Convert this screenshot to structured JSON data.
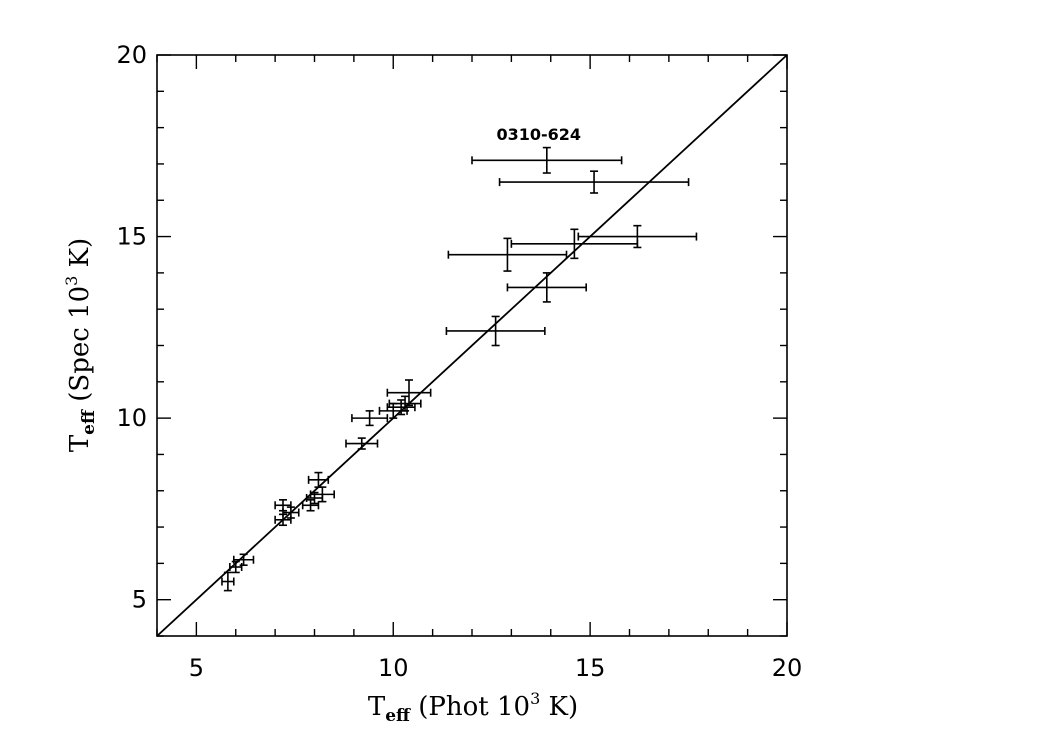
{
  "chart_data": {
    "type": "scatter",
    "title": "",
    "xlabel": {
      "main": "T",
      "sub": "eff",
      "rest1": " (Phot 10",
      "sup": "3",
      "rest2": " K)"
    },
    "ylabel": {
      "main": "T",
      "sub": "eff",
      "rest1": " (Spec 10",
      "sup": "3",
      "rest2": " K)"
    },
    "xlim": [
      4,
      20
    ],
    "ylim": [
      4,
      20
    ],
    "x_major_ticks": [
      5,
      10,
      15,
      20
    ],
    "y_major_ticks": [
      5,
      10,
      15,
      20
    ],
    "x_tick_labels": [
      "5",
      "10",
      "15",
      "20"
    ],
    "y_tick_labels": [
      "5",
      "10",
      "15",
      "20"
    ],
    "minor_step": 1,
    "reference_line": {
      "from": [
        4,
        4
      ],
      "to": [
        20,
        20
      ]
    },
    "annotations": [
      {
        "text": "0310-624",
        "x": 14.0,
        "y": 17.8
      }
    ],
    "points": [
      {
        "x": 5.8,
        "y": 5.5,
        "xerr": 0.15,
        "yerr": 0.25
      },
      {
        "x": 6.0,
        "y": 5.9,
        "xerr": 0.15,
        "yerr": 0.15
      },
      {
        "x": 6.2,
        "y": 6.1,
        "xerr": 0.25,
        "yerr": 0.15
      },
      {
        "x": 7.2,
        "y": 7.6,
        "xerr": 0.2,
        "yerr": 0.15
      },
      {
        "x": 7.2,
        "y": 7.2,
        "xerr": 0.2,
        "yerr": 0.15
      },
      {
        "x": 7.4,
        "y": 7.4,
        "xerr": 0.2,
        "yerr": 0.15
      },
      {
        "x": 7.9,
        "y": 7.6,
        "xerr": 0.2,
        "yerr": 0.15
      },
      {
        "x": 8.0,
        "y": 7.8,
        "xerr": 0.2,
        "yerr": 0.15
      },
      {
        "x": 8.2,
        "y": 7.9,
        "xerr": 0.3,
        "yerr": 0.2
      },
      {
        "x": 8.1,
        "y": 8.3,
        "xerr": 0.25,
        "yerr": 0.2
      },
      {
        "x": 9.2,
        "y": 9.3,
        "xerr": 0.4,
        "yerr": 0.15
      },
      {
        "x": 9.4,
        "y": 10.0,
        "xerr": 0.45,
        "yerr": 0.2
      },
      {
        "x": 10.0,
        "y": 10.2,
        "xerr": 0.35,
        "yerr": 0.2
      },
      {
        "x": 10.2,
        "y": 10.3,
        "xerr": 0.35,
        "yerr": 0.2
      },
      {
        "x": 10.3,
        "y": 10.4,
        "xerr": 0.4,
        "yerr": 0.2
      },
      {
        "x": 10.4,
        "y": 10.7,
        "xerr": 0.55,
        "yerr": 0.35
      },
      {
        "x": 12.6,
        "y": 12.4,
        "xerr": 1.25,
        "yerr": 0.4
      },
      {
        "x": 13.9,
        "y": 13.6,
        "xerr": 1.0,
        "yerr": 0.4
      },
      {
        "x": 12.9,
        "y": 14.5,
        "xerr": 1.5,
        "yerr": 0.45
      },
      {
        "x": 14.6,
        "y": 14.8,
        "xerr": 1.6,
        "yerr": 0.4
      },
      {
        "x": 16.2,
        "y": 15.0,
        "xerr": 1.5,
        "yerr": 0.3
      },
      {
        "x": 15.1,
        "y": 16.5,
        "xerr": 2.4,
        "yerr": 0.3
      },
      {
        "x": 13.9,
        "y": 17.1,
        "xerr": 1.9,
        "yerr": 0.35
      }
    ]
  }
}
